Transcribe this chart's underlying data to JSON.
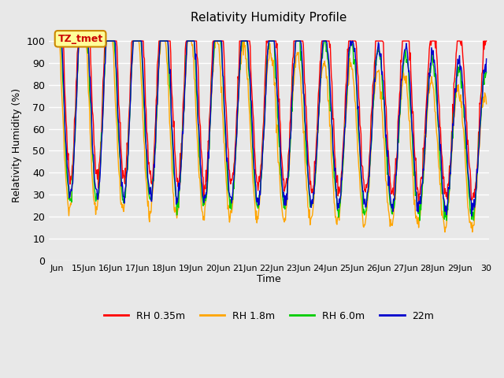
{
  "title": "Relativity Humidity Profile",
  "xlabel": "Time",
  "ylabel": "Relativity Humidity (%)",
  "ylim": [
    0,
    105
  ],
  "yticks": [
    0,
    10,
    20,
    30,
    40,
    50,
    60,
    70,
    80,
    90,
    100
  ],
  "bg_color": "#e8e8e8",
  "plot_bg_color": "#e8e8e8",
  "grid_color": "#ffffff",
  "xtick_labels": [
    "Jun",
    "15Jun",
    "16Jun",
    "17Jun",
    "18Jun",
    "19Jun",
    "20Jun",
    "21Jun",
    "22Jun",
    "23Jun",
    "24Jun",
    "25Jun",
    "26Jun",
    "27Jun",
    "28Jun",
    "29Jun",
    "30"
  ],
  "legend_labels": [
    "RH 0.35m",
    "RH 1.8m",
    "RH 6.0m",
    "22m"
  ],
  "legend_colors": [
    "#ff0000",
    "#ffa500",
    "#00cc00",
    "#0000cc"
  ],
  "annotation_text": "TZ_tmet",
  "annotation_bg": "#ffff99",
  "annotation_border": "#cc8800"
}
